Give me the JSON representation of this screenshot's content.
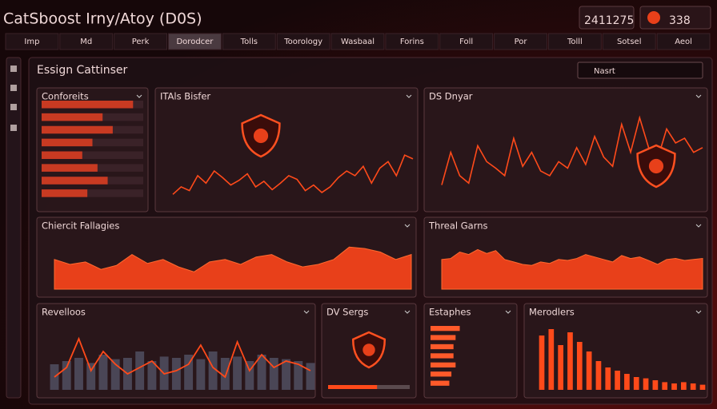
{
  "header": {
    "title": "CatSboost Irny/Atoy (D0S)",
    "counters": [
      2411275,
      338
    ]
  },
  "tabs": [
    "Imp",
    "Md",
    "Perk",
    "Dorodcer",
    "Tolls",
    "Toorology",
    "Wasbaal",
    "Forins",
    "Foll",
    "Por",
    "Tolll",
    "Sotsel",
    "Aeol"
  ],
  "workspace": {
    "title": "Essign Cattinser",
    "search": "Nasrt"
  },
  "panels": [
    {
      "title": "Conforeits",
      "type": "list",
      "ylim": [
        0,
        100
      ],
      "values": [
        90,
        60,
        70,
        50,
        40,
        55,
        65,
        45
      ]
    },
    {
      "title": "ITAls Bisfer",
      "type": "line",
      "ylim": [
        0,
        100
      ],
      "values": [
        10,
        18,
        14,
        30,
        22,
        35,
        28,
        20,
        25,
        32,
        18,
        24,
        15,
        22,
        30,
        26,
        14,
        20,
        12,
        18,
        28,
        35,
        30,
        40,
        22,
        38,
        45,
        30,
        52,
        48
      ]
    },
    {
      "title": "DS Dnyar",
      "type": "line",
      "ylim": [
        0,
        100
      ],
      "values": [
        20,
        55,
        30,
        22,
        62,
        45,
        38,
        30,
        70,
        40,
        55,
        35,
        30,
        45,
        38,
        60,
        42,
        72,
        50,
        40,
        85,
        55,
        92,
        60,
        48,
        80,
        65,
        70,
        55,
        60
      ]
    },
    {
      "title": "Chiercit Fallagies",
      "type": "area",
      "ylim": [
        0,
        100
      ],
      "values": [
        60,
        50,
        55,
        40,
        48,
        70,
        52,
        60,
        45,
        35,
        55,
        60,
        50,
        65,
        70,
        55,
        45,
        50,
        60,
        85,
        82,
        75,
        60,
        70
      ]
    },
    {
      "title": "Threal Garns",
      "type": "area",
      "ylim": [
        0,
        100
      ],
      "values": [
        60,
        62,
        75,
        70,
        80,
        72,
        78,
        60,
        55,
        50,
        48,
        55,
        52,
        60,
        58,
        62,
        70,
        65,
        60,
        55,
        68,
        62,
        65,
        58,
        50,
        60,
        62,
        58,
        60,
        62
      ]
    },
    {
      "title": "Revelloos",
      "type": "combo",
      "ylim": [
        0,
        100
      ],
      "values": [
        40,
        45,
        50,
        42,
        55,
        48,
        50,
        60,
        45,
        52,
        50,
        55,
        48,
        60,
        50,
        52,
        45,
        55,
        50,
        48,
        45,
        42
      ],
      "line": [
        20,
        35,
        80,
        30,
        60,
        40,
        25,
        35,
        45,
        25,
        30,
        40,
        70,
        35,
        20,
        75,
        30,
        55,
        35,
        45,
        40,
        30
      ]
    },
    {
      "title": "DV Sergs",
      "type": "gauge",
      "ylim": [
        0,
        100
      ],
      "values": [
        60
      ]
    },
    {
      "title": "Estaphes",
      "type": "hbar",
      "ylim": [
        0,
        100
      ],
      "values": [
        70,
        60,
        55,
        55,
        60,
        50,
        45
      ]
    },
    {
      "title": "Merodlers",
      "type": "bar",
      "ylim": [
        0,
        100
      ],
      "values": [
        85,
        95,
        70,
        90,
        75,
        60,
        45,
        35,
        30,
        25,
        20,
        18,
        15,
        12,
        10,
        12,
        10,
        8
      ]
    }
  ]
}
